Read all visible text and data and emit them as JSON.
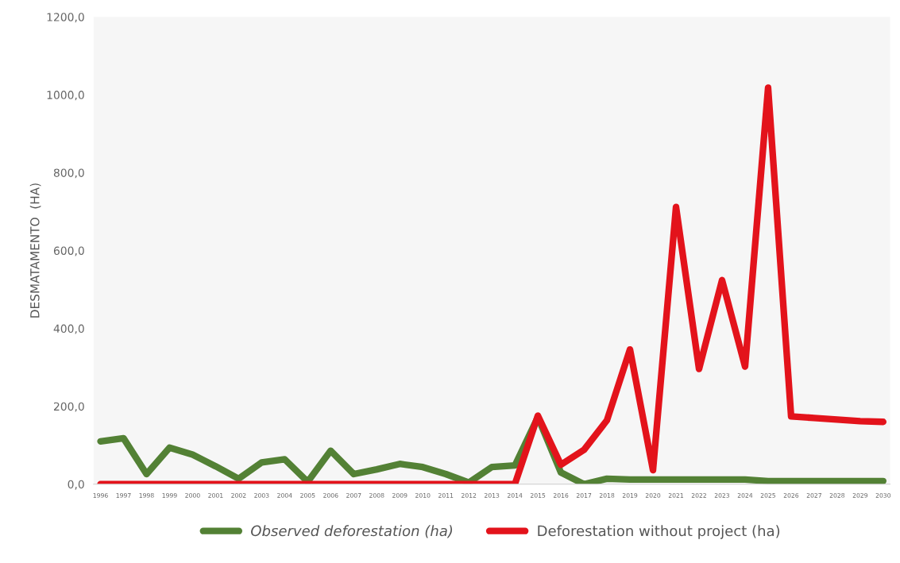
{
  "chart_data": {
    "type": "line",
    "ylabel": "DESMATAMENTO  (HA)",
    "categories": [
      "1996",
      "1997",
      "1998",
      "1999",
      "2000",
      "2001",
      "2002",
      "2003",
      "2004",
      "2005",
      "2006",
      "2007",
      "2008",
      "2009",
      "2010",
      "2011",
      "2012",
      "2013",
      "2014",
      "2015",
      "2016",
      "2017",
      "2018",
      "2019",
      "2020",
      "2021",
      "2022",
      "2023",
      "2024",
      "2025",
      "2026",
      "2027",
      "2028",
      "2029",
      "2030"
    ],
    "series": [
      {
        "name": "Observed deforestation (ha)",
        "color": "#538135",
        "values": [
          110,
          118,
          26,
          94,
          76,
          46,
          14,
          56,
          64,
          6,
          86,
          26,
          38,
          52,
          44,
          26,
          4,
          44,
          48,
          172,
          30,
          0,
          14,
          12,
          12,
          12,
          12,
          12,
          12,
          8,
          8,
          8,
          8,
          8,
          8
        ]
      },
      {
        "name": "Deforestation without project (ha)",
        "color": "#e3131b",
        "values": [
          0,
          0,
          0,
          0,
          0,
          0,
          0,
          0,
          0,
          0,
          0,
          0,
          0,
          0,
          0,
          0,
          0,
          0,
          0,
          176,
          50,
          88,
          164,
          346,
          36,
          712,
          296,
          524,
          302,
          1018,
          174,
          170,
          166,
          162,
          160
        ]
      }
    ],
    "ylim": [
      0,
      1200
    ],
    "yticks": [
      {
        "value": 0,
        "label": "0,0"
      },
      {
        "value": 200,
        "label": "200,0"
      },
      {
        "value": 400,
        "label": "400,0"
      },
      {
        "value": 600,
        "label": "600,0"
      },
      {
        "value": 800,
        "label": "800,0"
      },
      {
        "value": 1000,
        "label": "1000,0"
      },
      {
        "value": 1200,
        "label": "1200,0"
      }
    ],
    "grid": false,
    "legend": "bottom",
    "marker": "none",
    "line_style": "solid"
  }
}
